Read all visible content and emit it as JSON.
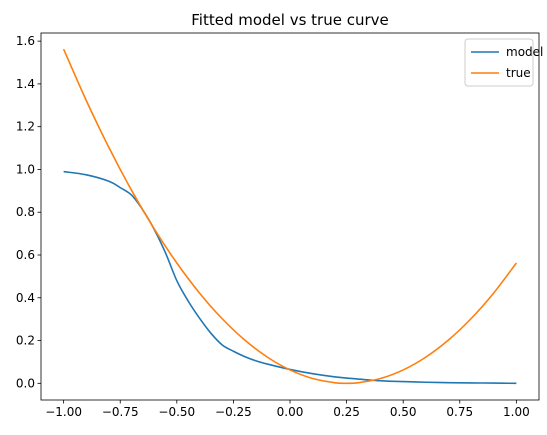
{
  "chart_data": {
    "type": "line",
    "title": "Fitted model vs true curve",
    "xlabel": "",
    "ylabel": "",
    "xlim": [
      -1.1,
      1.1
    ],
    "ylim": [
      -0.078,
      1.638
    ],
    "x_ticks": [
      -1.0,
      -0.75,
      -0.5,
      -0.25,
      0.0,
      0.25,
      0.5,
      0.75,
      1.0
    ],
    "x_tick_labels": [
      "−1.00",
      "−0.75",
      "−0.50",
      "−0.25",
      "0.00",
      "0.25",
      "0.50",
      "0.75",
      "1.00"
    ],
    "y_ticks": [
      0.0,
      0.2,
      0.4,
      0.6,
      0.8,
      1.0,
      1.2,
      1.4,
      1.6
    ],
    "y_tick_labels": [
      "0.0",
      "0.2",
      "0.4",
      "0.6",
      "0.8",
      "1.0",
      "1.2",
      "1.4",
      "1.6"
    ],
    "grid": false,
    "legend_position": "top-right",
    "series": [
      {
        "name": "model",
        "color": "#1f77b4",
        "x": [
          -1.0,
          -0.9,
          -0.8,
          -0.75,
          -0.7,
          -0.65,
          -0.6,
          -0.55,
          -0.5,
          -0.45,
          -0.4,
          -0.35,
          -0.3,
          -0.25,
          -0.2,
          -0.15,
          -0.1,
          0.0,
          0.1,
          0.2,
          0.3,
          0.4,
          0.5,
          0.6,
          0.7,
          0.8,
          0.9,
          1.0
        ],
        "y": [
          0.99,
          0.975,
          0.945,
          0.915,
          0.88,
          0.81,
          0.72,
          0.61,
          0.48,
          0.385,
          0.305,
          0.235,
          0.18,
          0.15,
          0.125,
          0.105,
          0.09,
          0.065,
          0.045,
          0.03,
          0.02,
          0.012,
          0.008,
          0.005,
          0.003,
          0.002,
          0.001,
          0.0
        ]
      },
      {
        "name": "true",
        "color": "#ff7f0e",
        "x": [
          -1.0,
          -0.9,
          -0.8,
          -0.7,
          -0.6,
          -0.5,
          -0.4,
          -0.3,
          -0.2,
          -0.1,
          0.0,
          0.1,
          0.2,
          0.25,
          0.3,
          0.4,
          0.5,
          0.6,
          0.7,
          0.8,
          0.9,
          1.0
        ],
        "y": [
          1.5625,
          1.3225,
          1.1025,
          0.9025,
          0.7225,
          0.5625,
          0.4225,
          0.3025,
          0.2025,
          0.1225,
          0.0625,
          0.0225,
          0.0025,
          0.0,
          0.0025,
          0.0225,
          0.0625,
          0.1225,
          0.2025,
          0.3025,
          0.4225,
          0.5625
        ]
      }
    ]
  }
}
